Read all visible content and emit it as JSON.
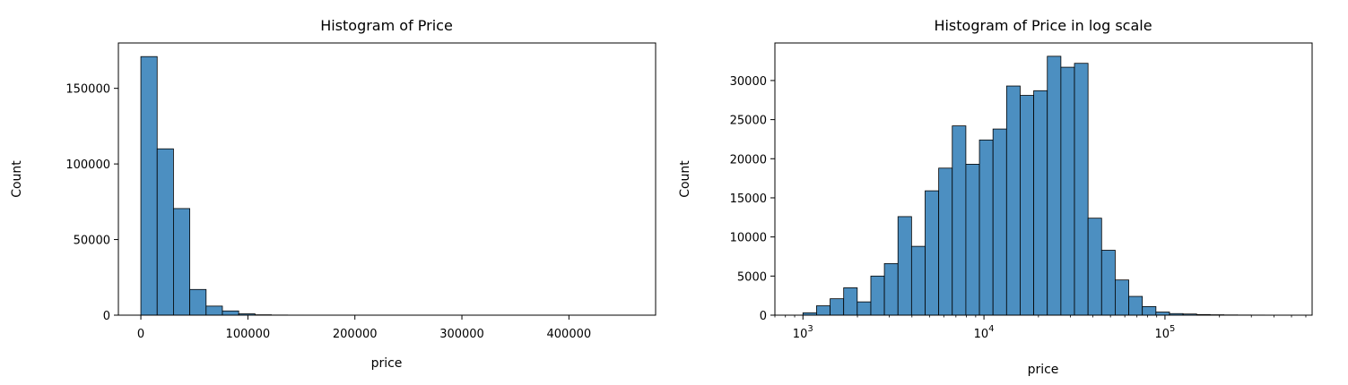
{
  "chart_data": [
    {
      "type": "bar",
      "title": "Histogram of Price",
      "xlabel": "price",
      "ylabel": "Count",
      "xscale": "linear",
      "xlim": [
        -21000,
        481000
      ],
      "ylim": [
        0,
        180000
      ],
      "xticks": [
        {
          "value": 0,
          "label": "0"
        },
        {
          "value": 100000,
          "label": "100000"
        },
        {
          "value": 200000,
          "label": "200000"
        },
        {
          "value": 300000,
          "label": "300000"
        },
        {
          "value": 400000,
          "label": "400000"
        }
      ],
      "yticks": [
        {
          "value": 0,
          "label": "0"
        },
        {
          "value": 50000,
          "label": "50000"
        },
        {
          "value": 100000,
          "label": "100000"
        },
        {
          "value": 150000,
          "label": "150000"
        }
      ],
      "bin_edges": [
        1,
        15240,
        30479,
        45718,
        60957,
        76196,
        91435,
        106674,
        121913,
        137152,
        152391,
        167630,
        182869,
        198108,
        213347,
        228586,
        243825,
        259064,
        274303,
        289542,
        304781,
        320020,
        335259,
        350498,
        365737,
        380976,
        396215,
        411454,
        426693,
        441932,
        457171
      ],
      "values": [
        171000,
        110000,
        70500,
        17000,
        6000,
        2800,
        900,
        250,
        100,
        60,
        40,
        25,
        15,
        10,
        8,
        6,
        5,
        4,
        3,
        3,
        2,
        2,
        2,
        1,
        1,
        1,
        1,
        1,
        1,
        1
      ],
      "bar_color": "#4c8fc1",
      "edge_color": "#000000",
      "grid": false
    },
    {
      "type": "bar",
      "title": "Histogram of Price in log scale",
      "xlabel": "price",
      "ylabel": "Count",
      "xscale": "log",
      "xlim": [
        700,
        650000
      ],
      "ylim": [
        0,
        34800
      ],
      "xticks": [
        {
          "value": 1000,
          "label": "10^3",
          "base": "10",
          "exp": "3"
        },
        {
          "value": 10000,
          "label": "10^4",
          "base": "10",
          "exp": "4"
        },
        {
          "value": 100000,
          "label": "10^5",
          "base": "10",
          "exp": "5"
        }
      ],
      "yticks": [
        {
          "value": 0,
          "label": "0"
        },
        {
          "value": 5000,
          "label": "5000"
        },
        {
          "value": 10000,
          "label": "10000"
        },
        {
          "value": 15000,
          "label": "15000"
        },
        {
          "value": 20000,
          "label": "20000"
        },
        {
          "value": 25000,
          "label": "25000"
        },
        {
          "value": 30000,
          "label": "30000"
        }
      ],
      "bin_edges": [
        1000,
        1189,
        1413,
        1679,
        1995,
        2372,
        2818,
        3350,
        3981,
        4732,
        5623,
        6683,
        7943,
        9441,
        11220,
        13335,
        15849,
        18836,
        22387,
        26607,
        31623,
        37584,
        44668,
        53088,
        63096,
        74989,
        89125,
        105925,
        125893,
        149624,
        177828,
        211349,
        251189,
        298538,
        354813,
        421697,
        501187
      ],
      "values": [
        300,
        1200,
        2100,
        3500,
        1700,
        5000,
        6600,
        12600,
        8800,
        15900,
        18800,
        24200,
        19300,
        22400,
        23800,
        29300,
        28100,
        28700,
        33100,
        31700,
        32200,
        12400,
        8300,
        4500,
        2400,
        1100,
        400,
        200,
        150,
        80,
        50,
        30,
        20,
        15,
        10,
        5
      ],
      "bar_color": "#4c8fc1",
      "edge_color": "#000000",
      "grid": false
    }
  ]
}
